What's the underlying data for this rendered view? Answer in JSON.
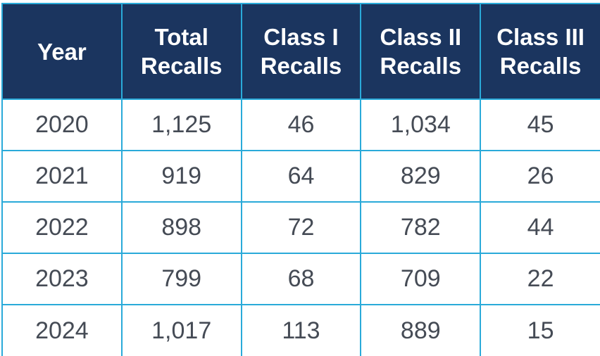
{
  "table": {
    "header": [
      "Year",
      "Total Recalls",
      "Class I Recalls",
      "Class II Recalls",
      "Class III Recalls"
    ],
    "rows": [
      [
        "2020",
        "1,125",
        "46",
        "1,034",
        "45"
      ],
      [
        "2021",
        "919",
        "64",
        "829",
        "26"
      ],
      [
        "2022",
        "898",
        "72",
        "782",
        "44"
      ],
      [
        "2023",
        "799",
        "68",
        "709",
        "22"
      ],
      [
        "2024",
        "1,017",
        "113",
        "889",
        "15"
      ]
    ]
  }
}
